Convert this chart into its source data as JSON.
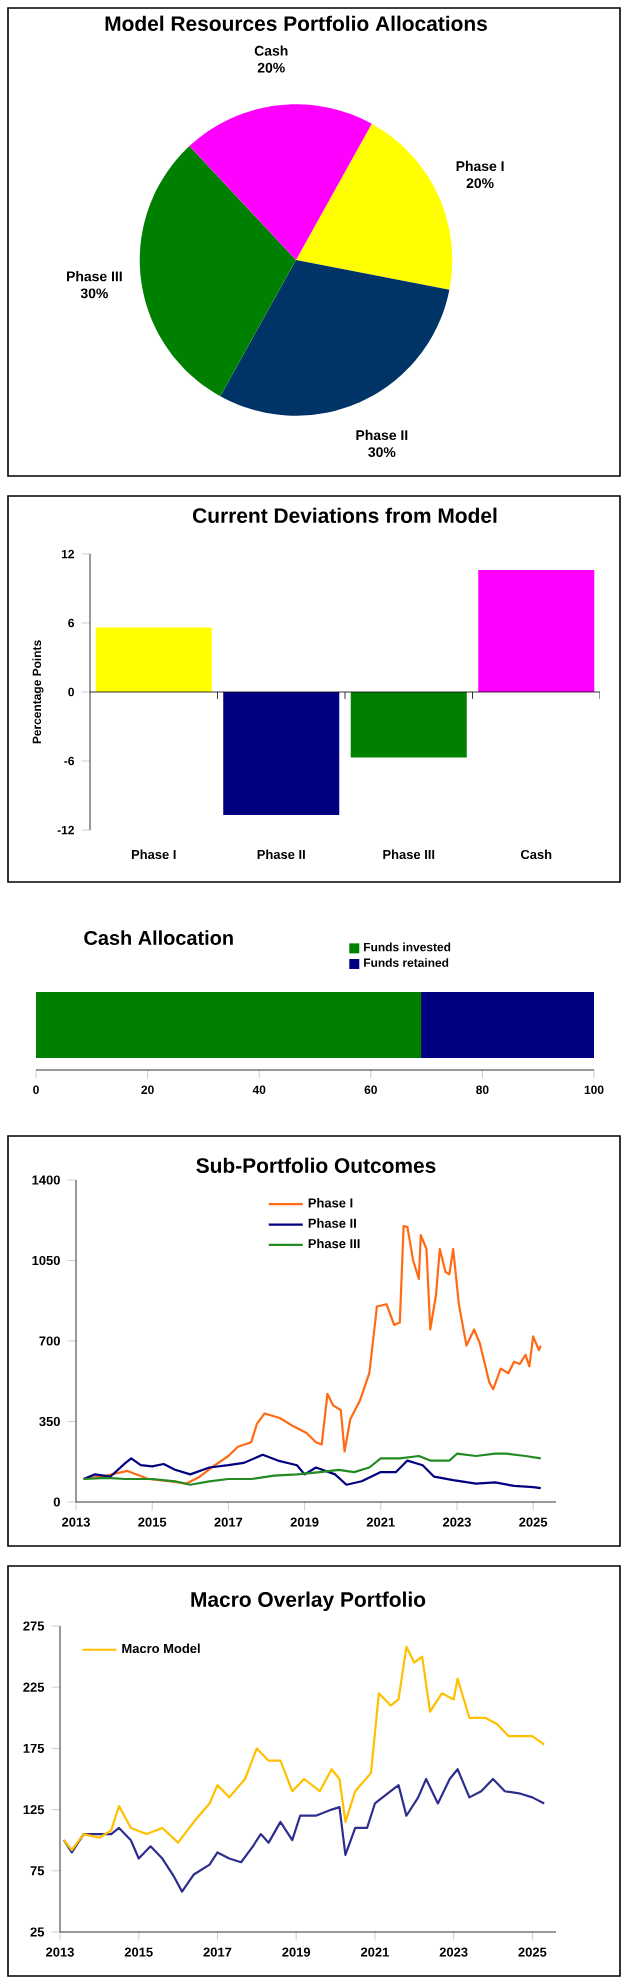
{
  "chart_data": [
    {
      "type": "pie",
      "title": "Model Resources Portfolio Allocations",
      "categories": [
        "Phase I",
        "Phase II",
        "Phase III",
        "Cash"
      ],
      "values": [
        20,
        30,
        30,
        20
      ],
      "value_labels": [
        "20%",
        "30%",
        "30%",
        "20%"
      ],
      "colors": [
        "#ffff00",
        "#003366",
        "#008000",
        "#ff00ff"
      ]
    },
    {
      "type": "bar",
      "title": "Current Deviations from Model",
      "ylabel": "Percentage Points",
      "categories": [
        "Phase I",
        "Phase II",
        "Phase III",
        "Cash"
      ],
      "values": [
        5.6,
        -10.7,
        -5.7,
        10.6
      ],
      "colors": [
        "#ffff00",
        "#000080",
        "#008000",
        "#ff00ff"
      ],
      "ylim": [
        -12,
        12
      ],
      "yticks": [
        -12,
        -6,
        0,
        6,
        12
      ]
    },
    {
      "type": "bar",
      "title": "Cash Allocation",
      "orientation": "horizontal",
      "stacked": true,
      "categories": [
        null
      ],
      "legend": "top",
      "xlim": [
        0,
        100
      ],
      "xticks": [
        0,
        20,
        40,
        60,
        80,
        100
      ],
      "series": [
        {
          "name": "Funds invested",
          "color": "#008000",
          "values": [
            69
          ]
        },
        {
          "name": "Funds retained",
          "color": "#000080",
          "values": [
            31
          ]
        }
      ]
    },
    {
      "type": "line",
      "title": "Sub-Portfolio Outcomes",
      "legend": "top",
      "xlim": [
        2013,
        2025.6
      ],
      "xticks": [
        2013,
        2015,
        2017,
        2019,
        2021,
        2023,
        2025
      ],
      "ylim": [
        0,
        1400
      ],
      "yticks": [
        0,
        350,
        700,
        1050,
        1400
      ],
      "series": [
        {
          "name": "Phase I",
          "color": "#ff6a13",
          "x": [
            2013.2,
            2013.8,
            2014.35,
            2014.9,
            2015.5,
            2015.9,
            2016.25,
            2016.6,
            2017.0,
            2017.25,
            2017.6,
            2017.75,
            2017.95,
            2018.35,
            2018.7,
            2019.05,
            2019.3,
            2019.45,
            2019.6,
            2019.75,
            2019.95,
            2020.05,
            2020.2,
            2020.45,
            2020.7,
            2020.9,
            2021.15,
            2021.35,
            2021.5,
            2021.6,
            2021.7,
            2021.85,
            2022.0,
            2022.05,
            2022.2,
            2022.3,
            2022.45,
            2022.55,
            2022.7,
            2022.8,
            2022.9,
            2023.05,
            2023.25,
            2023.45,
            2023.6,
            2023.85,
            2023.95,
            2024.15,
            2024.35,
            2024.5,
            2024.65,
            2024.8,
            2024.9,
            2025.0,
            2025.15,
            2025.2
          ],
          "values": [
            100,
            115,
            135,
            100,
            90,
            80,
            110,
            155,
            200,
            240,
            260,
            340,
            385,
            365,
            330,
            300,
            260,
            250,
            470,
            420,
            400,
            220,
            360,
            440,
            560,
            850,
            860,
            770,
            780,
            1200,
            1195,
            1050,
            970,
            1160,
            1100,
            750,
            900,
            1100,
            1000,
            990,
            1100,
            860,
            680,
            750,
            690,
            520,
            490,
            580,
            560,
            610,
            600,
            640,
            590,
            720,
            660,
            680
          ]
        },
        {
          "name": "Phase II",
          "color": "#000080",
          "x": [
            2013.2,
            2013.5,
            2013.9,
            2014.3,
            2014.45,
            2014.7,
            2015.0,
            2015.3,
            2015.6,
            2016.0,
            2016.5,
            2017.0,
            2017.4,
            2017.9,
            2018.3,
            2018.8,
            2019.0,
            2019.3,
            2019.8,
            2020.1,
            2020.5,
            2021.0,
            2021.4,
            2021.7,
            2022.1,
            2022.4,
            2022.9,
            2023.5,
            2024.0,
            2024.5,
            2025.0,
            2025.2
          ],
          "values": [
            100,
            120,
            110,
            170,
            190,
            160,
            155,
            165,
            140,
            120,
            150,
            160,
            170,
            205,
            180,
            160,
            120,
            150,
            120,
            75,
            90,
            130,
            130,
            180,
            160,
            110,
            95,
            80,
            85,
            70,
            65,
            60
          ]
        },
        {
          "name": "Phase III",
          "color": "#228b22",
          "x": [
            2013.2,
            2013.8,
            2014.3,
            2015.0,
            2015.6,
            2016.0,
            2016.5,
            2017.0,
            2017.6,
            2018.2,
            2018.8,
            2019.4,
            2019.9,
            2020.3,
            2020.7,
            2021.0,
            2021.5,
            2022.0,
            2022.3,
            2022.8,
            2023.0,
            2023.5,
            2024.0,
            2024.3,
            2024.8,
            2025.2
          ],
          "values": [
            100,
            105,
            100,
            100,
            90,
            75,
            90,
            100,
            100,
            115,
            120,
            130,
            140,
            130,
            150,
            190,
            190,
            200,
            180,
            180,
            210,
            200,
            210,
            210,
            200,
            190
          ]
        }
      ]
    },
    {
      "type": "line",
      "title": "Macro Overlay Portfolio",
      "legend": "top left",
      "xlim": [
        2013,
        2025.6
      ],
      "xticks": [
        2013,
        2015,
        2017,
        2019,
        2021,
        2023,
        2025
      ],
      "ylim": [
        25,
        275
      ],
      "yticks": [
        25,
        75,
        125,
        175,
        225,
        275
      ],
      "series": [
        {
          "color": "#2e2e8f",
          "x": [
            2013.1,
            2013.3,
            2013.6,
            2014.0,
            2014.3,
            2014.5,
            2014.8,
            2015.0,
            2015.3,
            2015.6,
            2015.9,
            2016.1,
            2016.4,
            2016.8,
            2017.0,
            2017.3,
            2017.6,
            2017.9,
            2018.1,
            2018.3,
            2018.6,
            2018.9,
            2019.1,
            2019.5,
            2019.9,
            2020.1,
            2020.25,
            2020.5,
            2020.8,
            2021.0,
            2021.4,
            2021.6,
            2021.8,
            2022.1,
            2022.3,
            2022.6,
            2022.9,
            2023.1,
            2023.4,
            2023.7,
            2024.0,
            2024.3,
            2024.7,
            2025.0,
            2025.3
          ],
          "values": [
            100,
            90,
            105,
            105,
            105,
            110,
            100,
            85,
            95,
            85,
            70,
            58,
            72,
            80,
            90,
            85,
            82,
            95,
            105,
            98,
            115,
            100,
            120,
            120,
            125,
            127,
            88,
            110,
            110,
            130,
            140,
            145,
            120,
            135,
            150,
            130,
            150,
            158,
            135,
            140,
            150,
            140,
            138,
            135,
            130
          ]
        },
        {
          "name": "Macro Model",
          "color": "#ffc000",
          "x": [
            2013.1,
            2013.3,
            2013.6,
            2014.0,
            2014.3,
            2014.5,
            2014.8,
            2015.2,
            2015.6,
            2016.0,
            2016.4,
            2016.8,
            2017.0,
            2017.3,
            2017.7,
            2018.0,
            2018.3,
            2018.6,
            2018.9,
            2019.2,
            2019.6,
            2019.9,
            2020.1,
            2020.25,
            2020.5,
            2020.9,
            2021.1,
            2021.4,
            2021.6,
            2021.8,
            2022.0,
            2022.2,
            2022.4,
            2022.7,
            2023.0,
            2023.1,
            2023.4,
            2023.8,
            2024.1,
            2024.4,
            2024.7,
            2025.0,
            2025.3
          ],
          "values": [
            100,
            92,
            105,
            102,
            108,
            128,
            110,
            105,
            110,
            98,
            115,
            130,
            145,
            135,
            150,
            175,
            165,
            165,
            140,
            150,
            140,
            158,
            150,
            115,
            140,
            155,
            220,
            210,
            215,
            258,
            245,
            250,
            205,
            220,
            215,
            232,
            200,
            200,
            195,
            185,
            185,
            185,
            178
          ]
        }
      ]
    }
  ]
}
